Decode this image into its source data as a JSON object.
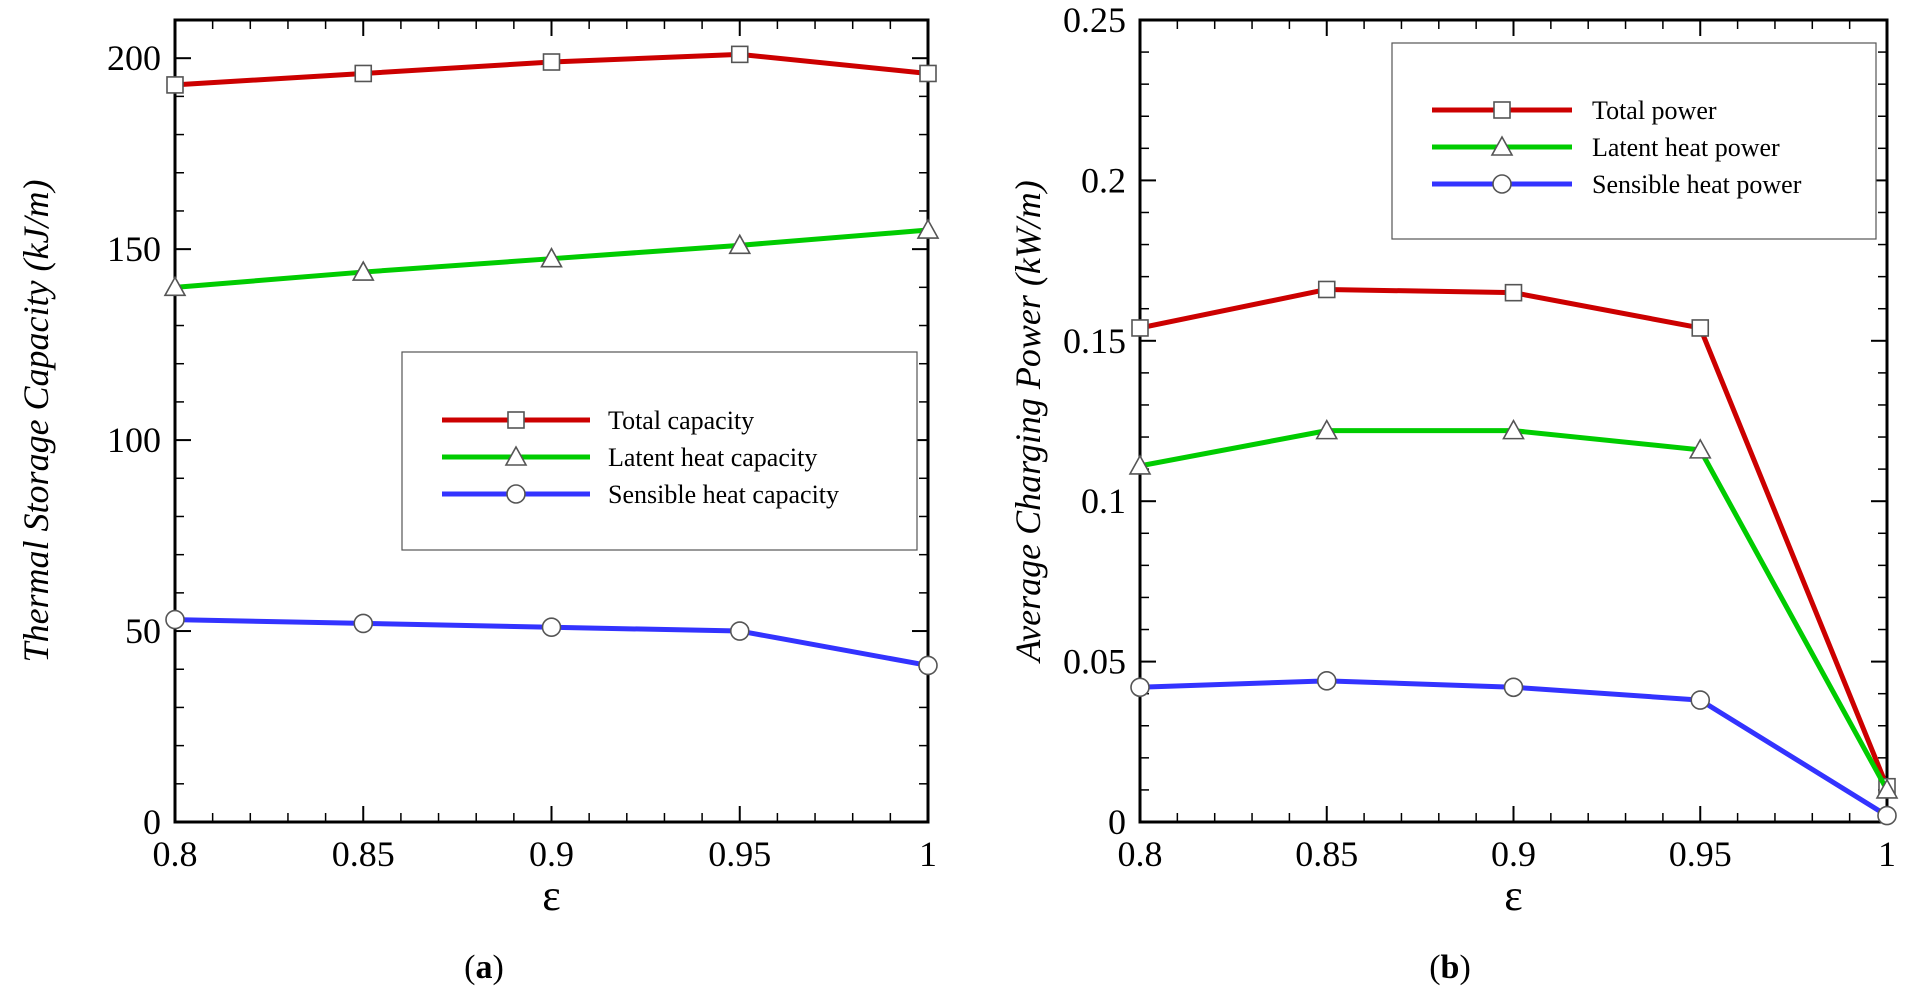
{
  "chart_data": [
    {
      "type": "line",
      "panel_label": "a",
      "title": "",
      "xlabel": "ε",
      "ylabel": "Thermal Storage Capacity (kJ/m)",
      "x": [
        0.8,
        0.85,
        0.9,
        0.95,
        1
      ],
      "x_tick_labels": [
        "0.8",
        "0.85",
        "0.9",
        "0.95",
        "1"
      ],
      "xlim": [
        0.8,
        1
      ],
      "ylim": [
        0,
        210
      ],
      "y_ticks": [
        0,
        50,
        100,
        150,
        200
      ],
      "y_tick_labels": [
        "0",
        "50",
        "100",
        "150",
        "200"
      ],
      "legend_position": "center-right",
      "series": [
        {
          "name": "Total capacity",
          "values": [
            193,
            196,
            199,
            201,
            196
          ],
          "color": "#cc0000",
          "marker": "square"
        },
        {
          "name": "Latent heat capacity",
          "values": [
            140,
            144,
            147.5,
            151,
            155
          ],
          "color": "#00cc00",
          "marker": "triangle"
        },
        {
          "name": "Sensible heat capacity",
          "values": [
            53,
            52,
            51,
            50,
            41
          ],
          "color": "#3333ff",
          "marker": "circle"
        }
      ]
    },
    {
      "type": "line",
      "panel_label": "b",
      "title": "",
      "xlabel": "ε",
      "ylabel": "Average Charging Power (kW/m)",
      "x": [
        0.8,
        0.85,
        0.9,
        0.95,
        1
      ],
      "x_tick_labels": [
        "0.8",
        "0.85",
        "0.9",
        "0.95",
        "1"
      ],
      "xlim": [
        0.8,
        1
      ],
      "ylim": [
        0,
        0.25
      ],
      "y_ticks": [
        0,
        0.05,
        0.1,
        0.15,
        0.2,
        0.25
      ],
      "y_tick_labels": [
        "0",
        "0.05",
        "0.1",
        "0.15",
        "0.2",
        "0.25"
      ],
      "legend_position": "top-right",
      "series": [
        {
          "name": "Total power",
          "values": [
            0.154,
            0.166,
            0.165,
            0.154,
            0.011
          ],
          "color": "#cc0000",
          "marker": "square"
        },
        {
          "name": "Latent heat power",
          "values": [
            0.111,
            0.122,
            0.122,
            0.116,
            0.01
          ],
          "color": "#00cc00",
          "marker": "triangle"
        },
        {
          "name": "Sensible heat power",
          "values": [
            0.042,
            0.044,
            0.042,
            0.038,
            0.002
          ],
          "color": "#3333ff",
          "marker": "circle"
        }
      ]
    }
  ]
}
